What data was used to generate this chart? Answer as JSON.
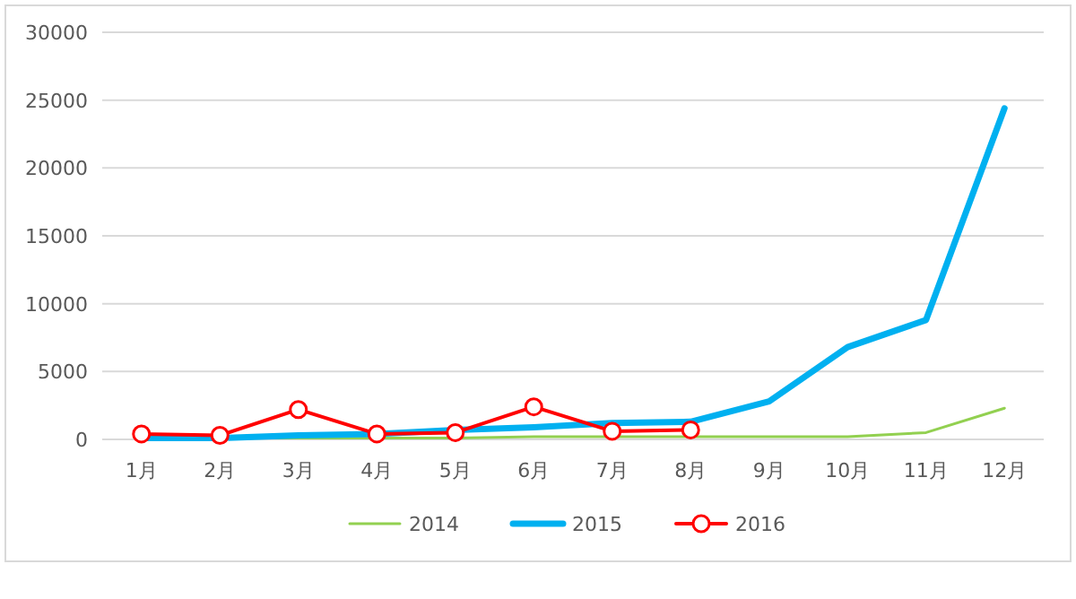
{
  "chart_data": {
    "type": "line",
    "categories": [
      "1月",
      "2月",
      "3月",
      "4月",
      "5月",
      "6月",
      "7月",
      "8月",
      "9月",
      "10月",
      "11月",
      "12月"
    ],
    "series": [
      {
        "name": "2014",
        "color": "#92d050",
        "marker": "none",
        "values": [
          100,
          100,
          100,
          100,
          100,
          200,
          200,
          200,
          200,
          200,
          500,
          2300
        ]
      },
      {
        "name": "2015",
        "color": "#00b0f0",
        "marker": "none",
        "values": [
          100,
          100,
          300,
          400,
          700,
          900,
          1200,
          1300,
          2800,
          6800,
          8800,
          24400
        ]
      },
      {
        "name": "2016",
        "color": "#ff0000",
        "marker": "circle",
        "values": [
          400,
          300,
          2200,
          400,
          500,
          2400,
          600,
          700,
          null,
          null,
          null,
          null
        ]
      }
    ],
    "ylim": [
      0,
      30000
    ],
    "yticks": [
      0,
      5000,
      10000,
      15000,
      20000,
      25000,
      30000
    ],
    "grid": "y",
    "legend": "bottom"
  }
}
